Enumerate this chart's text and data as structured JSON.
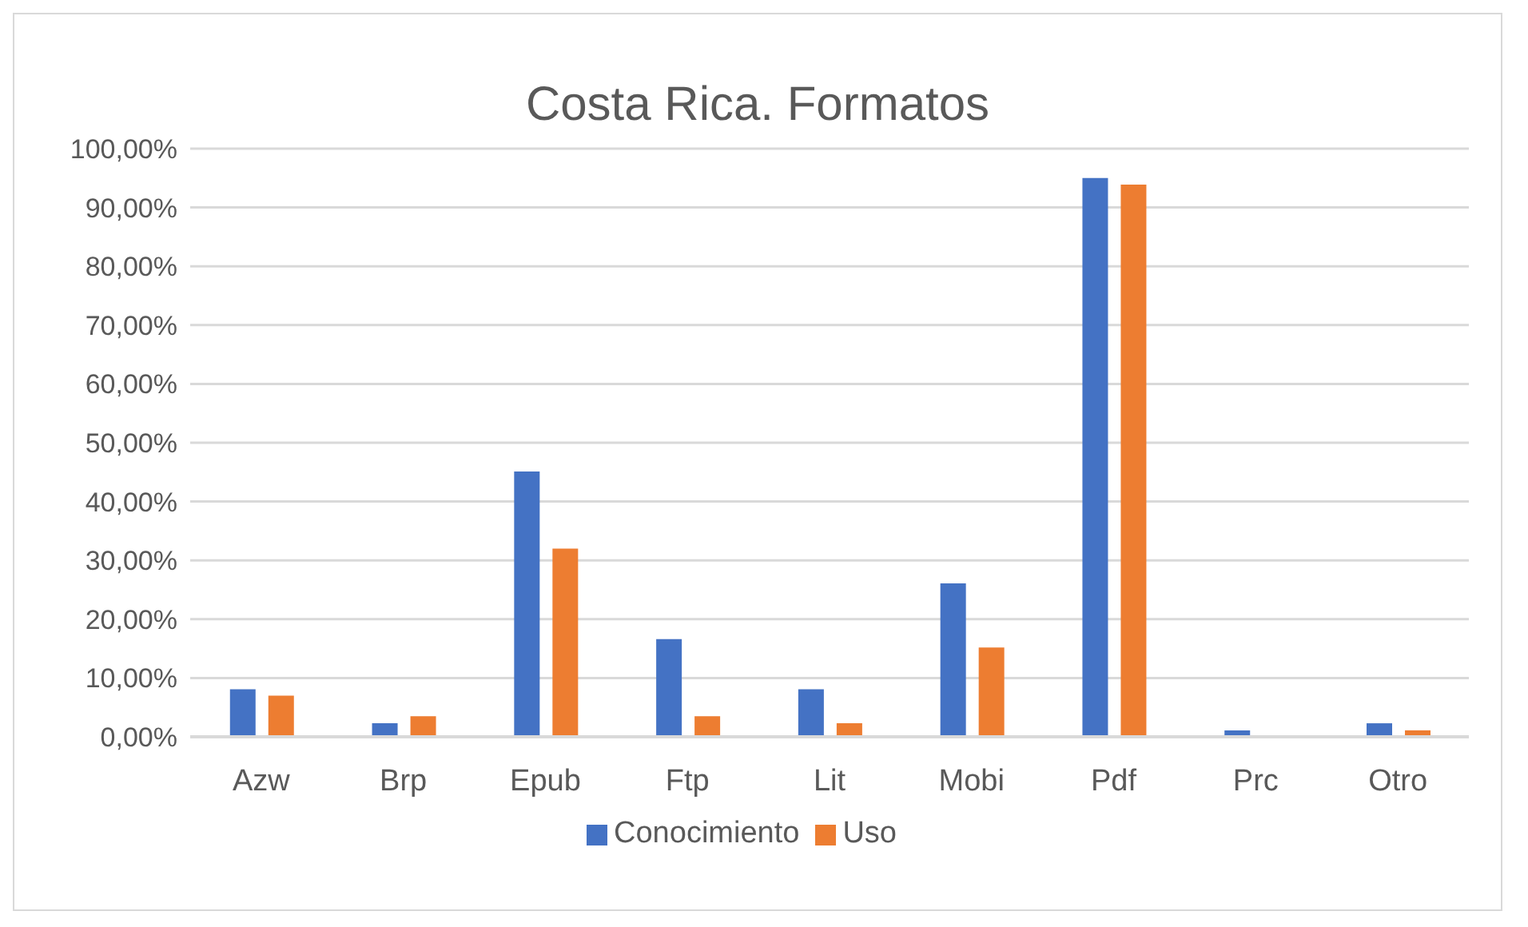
{
  "chart_data": {
    "type": "bar",
    "title": "Costa Rica. Formatos",
    "categories": [
      "Azw",
      "Brp",
      "Epub",
      "Ftp",
      "Lit",
      "Mobi",
      "Pdf",
      "Prc",
      "Otro"
    ],
    "series": [
      {
        "name": "Conocimiento",
        "color": "#4472c4",
        "values": [
          8.1,
          2.3,
          45.1,
          16.6,
          8.1,
          26.1,
          95.0,
          1.1,
          2.3
        ]
      },
      {
        "name": "Uso",
        "color": "#ed7d31",
        "values": [
          7.0,
          3.5,
          32.0,
          3.5,
          2.3,
          15.2,
          93.9,
          0,
          1.1
        ]
      }
    ],
    "ylim": [
      0,
      100
    ],
    "yticks": [
      {
        "value": 0,
        "label": "0,00%"
      },
      {
        "value": 10,
        "label": "10,00%"
      },
      {
        "value": 20,
        "label": "20,00%"
      },
      {
        "value": 30,
        "label": "30,00%"
      },
      {
        "value": 40,
        "label": "40,00%"
      },
      {
        "value": 50,
        "label": "50,00%"
      },
      {
        "value": 60,
        "label": "60,00%"
      },
      {
        "value": 70,
        "label": "70,00%"
      },
      {
        "value": 80,
        "label": "80,00%"
      },
      {
        "value": 90,
        "label": "90,00%"
      },
      {
        "value": 100,
        "label": "100,00%"
      }
    ],
    "grid": "y",
    "legend": "bottom"
  }
}
